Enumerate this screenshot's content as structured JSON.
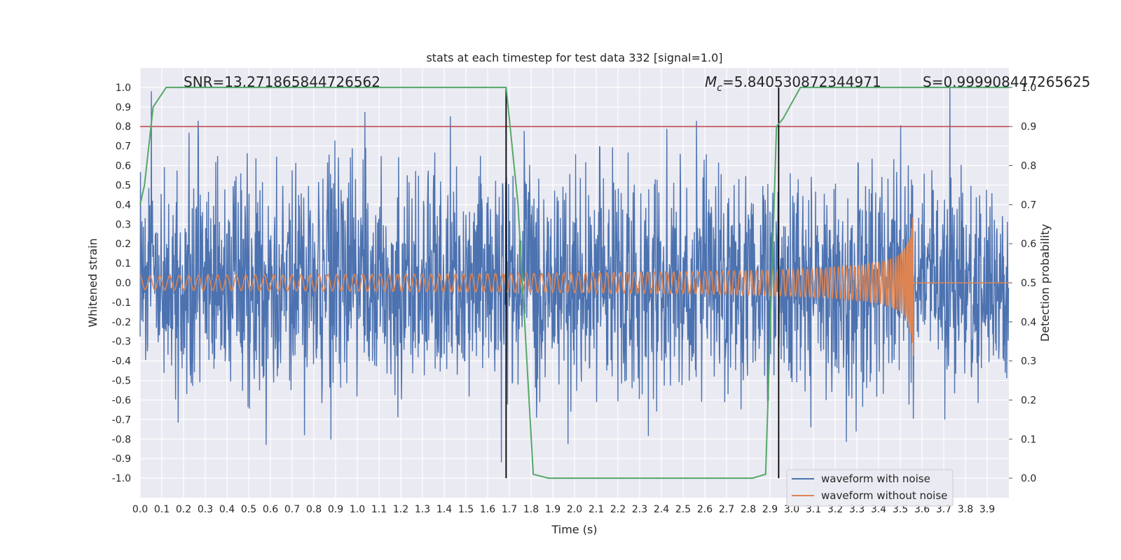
{
  "chart_data": {
    "type": "line",
    "title": "stats at each timestep for test data 332 [signal=1.0]",
    "xlabel": "Time (s)",
    "ylabel": "Whitened strain",
    "y2label": "Detection probability",
    "xlim": [
      0.0,
      4.0
    ],
    "ylim": [
      -1.1,
      1.1
    ],
    "y2lim": [
      -0.05,
      1.05
    ],
    "x_ticks": [
      "0.0",
      "0.1",
      "0.2",
      "0.3",
      "0.4",
      "0.5",
      "0.6",
      "0.7",
      "0.8",
      "0.9",
      "1.0",
      "1.1",
      "1.2",
      "1.3",
      "1.4",
      "1.5",
      "1.6",
      "1.7",
      "1.8",
      "1.9",
      "2.0",
      "2.1",
      "2.2",
      "2.3",
      "2.4",
      "2.5",
      "2.6",
      "2.7",
      "2.8",
      "2.9",
      "3.0",
      "3.1",
      "3.2",
      "3.3",
      "3.4",
      "3.5",
      "3.6",
      "3.7",
      "3.8",
      "3.9"
    ],
    "y_ticks": [
      "1.0",
      "0.9",
      "0.8",
      "0.7",
      "0.6",
      "0.5",
      "0.4",
      "0.3",
      "0.2",
      "0.1",
      "0.0",
      "-0.1",
      "-0.2",
      "-0.3",
      "-0.4",
      "-0.5",
      "-0.6",
      "-0.7",
      "-0.8",
      "-0.9",
      "-1.0"
    ],
    "y2_ticks": [
      "1.0",
      "0.9",
      "0.8",
      "0.7",
      "0.6",
      "0.5",
      "0.4",
      "0.3",
      "0.2",
      "0.1",
      "0.0"
    ],
    "annotations": {
      "snr": "SNR=13.271865844726562",
      "mc_symbol": "M",
      "mc_sub": "c",
      "mc_value": "=5.840530872344971",
      "s": "S=0.999908447265625"
    },
    "threshold": {
      "value": 0.8,
      "color": "#c44e52"
    },
    "vlines": [
      1.685,
      2.94
    ],
    "series": [
      {
        "name": "waveform with noise",
        "color": "#4c72b0",
        "kind": "noise",
        "sigma": 0.28,
        "seed": 332,
        "n": 2400,
        "duration": 4.0
      },
      {
        "name": "waveform without noise",
        "color": "#dd8452",
        "kind": "chirp",
        "end": 3.56,
        "f0": 22,
        "amp0": 0.035,
        "amp_end": 0.38
      },
      {
        "name": "detection probability",
        "color": "#55a868",
        "axis": "right",
        "x": [
          0.0,
          0.02,
          0.06,
          0.12,
          0.2,
          1.62,
          1.685,
          1.74,
          1.81,
          1.88,
          2.0,
          2.5,
          2.75,
          2.82,
          2.88,
          2.93,
          2.96,
          3.0,
          3.04,
          3.1,
          3.5,
          3.9,
          4.0
        ],
        "y": [
          0.7,
          0.75,
          0.95,
          1.0,
          1.0,
          1.0,
          1.0,
          0.7,
          0.01,
          0.0,
          0.0,
          0.0,
          0.0,
          0.0,
          0.01,
          0.9,
          0.92,
          0.96,
          1.0,
          1.0,
          1.0,
          1.0,
          1.0
        ]
      }
    ],
    "legend": [
      "waveform with noise",
      "waveform without noise"
    ],
    "legend_location": "lower-right",
    "grid": true
  }
}
